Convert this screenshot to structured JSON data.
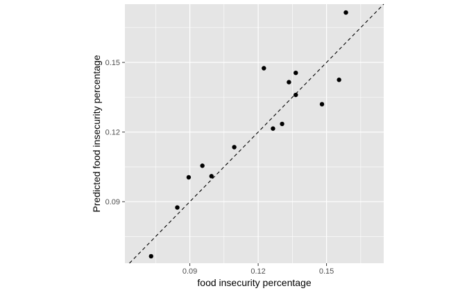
{
  "chart_data": {
    "type": "scatter",
    "xlabel": "food insecurity percentage",
    "ylabel": "Predicted food insecurity percentage",
    "xlim": [
      0.0615,
      0.1751
    ],
    "ylim": [
      0.0635,
      0.1751
    ],
    "x_ticks": [
      0.09,
      0.12,
      0.15
    ],
    "x_tick_labels": [
      "0.09",
      "0.12",
      "0.15"
    ],
    "y_ticks": [
      0.09,
      0.12,
      0.15
    ],
    "y_tick_labels": [
      "0.09",
      "0.12",
      "0.15"
    ],
    "grid": true,
    "reference_line": {
      "style": "dashed",
      "slope": 1,
      "intercept": 0
    },
    "points": [
      {
        "x": 0.073,
        "y": 0.0665
      },
      {
        "x": 0.0845,
        "y": 0.0875
      },
      {
        "x": 0.0895,
        "y": 0.1005
      },
      {
        "x": 0.0955,
        "y": 0.1055
      },
      {
        "x": 0.0995,
        "y": 0.101
      },
      {
        "x": 0.1095,
        "y": 0.1135
      },
      {
        "x": 0.1225,
        "y": 0.1475
      },
      {
        "x": 0.1265,
        "y": 0.1215
      },
      {
        "x": 0.1305,
        "y": 0.1235
      },
      {
        "x": 0.1335,
        "y": 0.1415
      },
      {
        "x": 0.1365,
        "y": 0.1455
      },
      {
        "x": 0.1365,
        "y": 0.136
      },
      {
        "x": 0.148,
        "y": 0.132
      },
      {
        "x": 0.1555,
        "y": 0.1425
      },
      {
        "x": 0.1585,
        "y": 0.1715
      }
    ],
    "colors": {
      "panel": "#e5e5e5",
      "grid": "#ffffff",
      "point": "#000000",
      "tick": "#333333",
      "tick_label": "#4d4d4d"
    }
  }
}
